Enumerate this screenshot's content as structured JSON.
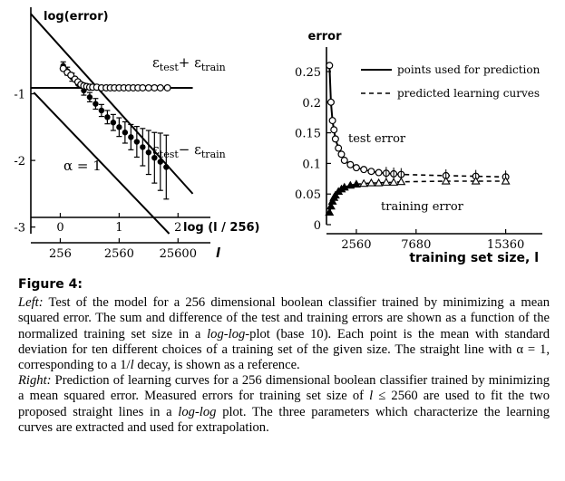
{
  "chart_data": [
    {
      "type": "scatter",
      "panel": "left",
      "title": "",
      "ylabel": "log(error)",
      "xlabel_top": "log (l / 256)",
      "xlabel_bottom": "l",
      "xlim": [
        -0.5,
        2.55
      ],
      "ylim": [
        -3.1,
        0.3
      ],
      "x_ticks": [
        0,
        1,
        2
      ],
      "x_tick_labels": [
        "0",
        "1",
        "2"
      ],
      "y_ticks": [
        -1,
        -2,
        -3
      ],
      "y_tick_labels": [
        "-1",
        "-2",
        "-3"
      ],
      "bottom_ticks": [
        0,
        1,
        2
      ],
      "bottom_tick_labels": [
        "256",
        "2560",
        "25600"
      ],
      "series": [
        {
          "name": "εtest+ εtrain",
          "marker": "circle",
          "x": [
            0.05,
            0.12,
            0.18,
            0.25,
            0.3,
            0.35,
            0.4,
            0.45,
            0.5,
            0.55,
            0.62,
            0.7,
            0.78,
            0.85,
            0.92,
            1.0,
            1.08,
            1.16,
            1.24,
            1.32,
            1.4,
            1.5,
            1.6,
            1.7,
            1.82
          ],
          "y": [
            -0.62,
            -0.68,
            -0.72,
            -0.78,
            -0.82,
            -0.86,
            -0.88,
            -0.89,
            -0.9,
            -0.9,
            -0.9,
            -0.91,
            -0.91,
            -0.91,
            -0.91,
            -0.91,
            -0.91,
            -0.91,
            -0.91,
            -0.91,
            -0.91,
            -0.91,
            -0.91,
            -0.91,
            -0.91
          ]
        },
        {
          "name": "εtest− εtrain",
          "marker": "filled-circle",
          "x": [
            0.05,
            0.12,
            0.2,
            0.3,
            0.4,
            0.5,
            0.6,
            0.7,
            0.8,
            0.9,
            1.0,
            1.1,
            1.2,
            1.3,
            1.4,
            1.5,
            1.6,
            1.7,
            1.8
          ],
          "y": [
            -0.58,
            -0.66,
            -0.75,
            -0.85,
            -0.95,
            -1.05,
            -1.15,
            -1.25,
            -1.35,
            -1.43,
            -1.5,
            -1.58,
            -1.65,
            -1.72,
            -1.8,
            -1.88,
            -1.96,
            -2.02,
            -2.1
          ],
          "err": [
            0.06,
            0.06,
            0.06,
            0.06,
            0.07,
            0.07,
            0.08,
            0.09,
            0.1,
            0.12,
            0.14,
            0.16,
            0.19,
            0.23,
            0.28,
            0.33,
            0.38,
            0.43,
            0.48
          ]
        },
        {
          "name": "sum fit",
          "kind": "line",
          "x": [
            -0.5,
            2.25
          ],
          "y": [
            -0.91,
            -0.91
          ]
        },
        {
          "name": "diff fit",
          "kind": "line",
          "x": [
            -0.5,
            2.25
          ],
          "y": [
            0.2,
            -2.5
          ]
        },
        {
          "name": "α = 1",
          "kind": "line",
          "x": [
            -0.45,
            1.85
          ],
          "y": [
            -0.98,
            -3.1
          ]
        }
      ],
      "annotations": [
        {
          "text": "ε",
          "sub": "test",
          "mid": "+ ε",
          "sub2": "train"
        },
        {
          "text": "ε",
          "sub": "test",
          "mid": "− ε",
          "sub2": "train"
        },
        {
          "text": "α = 1"
        }
      ]
    },
    {
      "type": "scatter",
      "panel": "right",
      "title": "",
      "ylabel": "error",
      "xlabel": "training set size, l",
      "xlim": [
        0,
        18500
      ],
      "ylim": [
        0,
        0.29
      ],
      "x_ticks": [
        2560,
        7680,
        15360
      ],
      "x_tick_labels": [
        "2560",
        "7680",
        "15360"
      ],
      "y_ticks": [
        0,
        0.05,
        0.1,
        0.15,
        0.2,
        0.25
      ],
      "y_tick_labels": [
        "0",
        "0.05",
        "0.1",
        "0.15",
        "0.2",
        "0.25"
      ],
      "legend": [
        {
          "label": "points used for prediction",
          "style": "solid"
        },
        {
          "label": "predicted learning curves",
          "style": "dashed"
        }
      ],
      "legend_position": "top-right",
      "series": [
        {
          "name": "test error",
          "marker": "circle",
          "x": [
            256,
            384,
            512,
            640,
            768,
            1024,
            1280,
            1536,
            2048,
            2560,
            3200,
            3840,
            4480,
            5120,
            5760,
            6400,
            10240,
            12800,
            15360
          ],
          "y": [
            0.26,
            0.2,
            0.17,
            0.155,
            0.14,
            0.125,
            0.115,
            0.105,
            0.098,
            0.093,
            0.09,
            0.087,
            0.085,
            0.084,
            0.083,
            0.082,
            0.08,
            0.079,
            0.078
          ]
        },
        {
          "name": "training error",
          "marker": "triangle",
          "x": [
            256,
            384,
            512,
            640,
            768,
            1024,
            1280,
            1536,
            2048,
            2560,
            3200,
            3840,
            4480,
            5120,
            5760,
            6400,
            10240,
            12800,
            15360
          ],
          "y": [
            0.02,
            0.03,
            0.038,
            0.044,
            0.048,
            0.054,
            0.058,
            0.061,
            0.064,
            0.066,
            0.067,
            0.068,
            0.068,
            0.069,
            0.069,
            0.07,
            0.071,
            0.071,
            0.071
          ]
        }
      ],
      "annotations": [
        {
          "text": "test error"
        },
        {
          "text": "training error"
        }
      ]
    }
  ],
  "caption": {
    "title": "Figure 4:",
    "left_label": "Left:",
    "left_text": " Test of the model for a 256 dimensional boolean classifier trained by minimizing a mean squared error. The sum and difference of the test and training errors are shown as a function of the normalized training set size in a ",
    "left_ital1": "log-log",
    "left_text2": "-plot (base 10). Each point is the mean with standard deviation for ten different choices of a training set of the given size. The straight line with α = 1, corresponding to a 1/",
    "left_ital2": "l",
    "left_text3": " decay, is shown as a reference.",
    "right_label": "Right:",
    "right_text": " Prediction of learning curves for a 256 dimensional boolean classifier trained by minimizing a mean squared error. Measured errors for training set size of ",
    "right_ital1": "l",
    "right_text2": " ≤ 2560 are used to fit the two proposed straight lines in a ",
    "right_ital2": "log-log",
    "right_text3": " plot. The three parameters which characterize the learning curves are extracted and used for extrapolation."
  }
}
